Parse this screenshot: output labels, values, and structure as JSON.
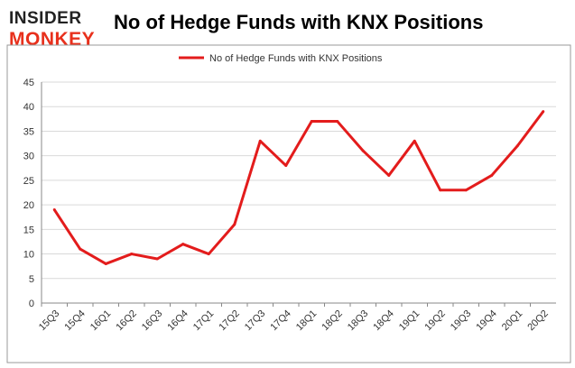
{
  "logo": {
    "line1": "INSIDER",
    "line2": "MONKEY"
  },
  "colors": {
    "line": "#e31c1c",
    "logo_top": "#222222",
    "logo_bottom": "#e8301c",
    "grid": "#d9d9d9",
    "frame": "#999999"
  },
  "chart_data": {
    "type": "line",
    "title": "No of Hedge Funds with KNX Positions",
    "xlabel": "",
    "ylabel": "",
    "categories": [
      "15Q3",
      "15Q4",
      "16Q1",
      "16Q2",
      "16Q3",
      "16Q4",
      "17Q1",
      "17Q2",
      "17Q3",
      "17Q4",
      "18Q1",
      "18Q2",
      "18Q3",
      "18Q4",
      "19Q1",
      "19Q2",
      "19Q3",
      "19Q4",
      "20Q1",
      "20Q2"
    ],
    "series": [
      {
        "name": "No of Hedge Funds with KNX Positions",
        "values": [
          19,
          11,
          8,
          10,
          9,
          12,
          10,
          16,
          33,
          28,
          37,
          37,
          31,
          26,
          33,
          23,
          23,
          26,
          32,
          39
        ]
      }
    ],
    "ylim": [
      0,
      45
    ],
    "yticks": [
      0,
      5,
      10,
      15,
      20,
      25,
      30,
      35,
      40,
      45
    ],
    "grid": true,
    "legend": "top-center"
  }
}
